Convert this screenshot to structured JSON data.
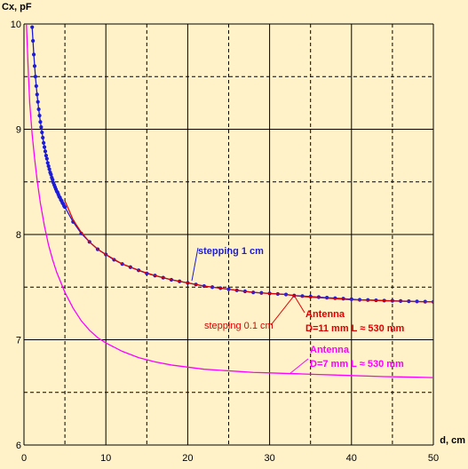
{
  "chart_data": {
    "type": "line",
    "xlabel": "d, cm",
    "ylabel": "Cx, pF",
    "xlim": [
      0,
      50
    ],
    "ylim": [
      6,
      10
    ],
    "x_ticks": [
      0,
      10,
      20,
      30,
      40,
      50
    ],
    "y_ticks": [
      6,
      7,
      8,
      9,
      10
    ],
    "x_ticks_labels": [
      "0",
      "10",
      "20",
      "30",
      "40",
      "50"
    ],
    "y_ticks_labels": [
      "6",
      "7",
      "8",
      "9",
      "10"
    ],
    "grid": true,
    "series": [
      {
        "color": "#1C1CD8",
        "marker": "dot",
        "x": [
          1.0,
          1.1,
          1.2,
          1.3,
          1.4,
          1.5,
          1.6,
          1.7,
          1.8,
          1.9,
          2.0,
          2.1,
          2.2,
          2.3,
          2.4,
          2.5,
          2.6,
          2.7,
          2.8,
          2.9,
          3.0,
          3.1,
          3.2,
          3.3,
          3.4,
          3.5,
          3.6,
          3.7,
          3.8,
          3.9,
          4.0,
          4.1,
          4.2,
          4.3,
          4.4,
          4.5,
          4.6,
          4.7,
          4.8,
          4.9,
          5.0,
          6,
          7,
          8,
          9,
          10,
          11,
          12,
          13,
          14,
          15,
          16,
          17,
          18,
          19,
          20,
          21,
          22,
          23,
          24,
          25,
          26,
          27,
          28,
          29,
          30,
          31,
          32,
          33,
          34,
          35,
          36,
          37,
          38,
          39,
          40,
          41,
          42,
          43,
          44,
          45,
          46,
          47,
          48,
          49,
          50
        ],
        "y": [
          9.97,
          9.84,
          9.71,
          9.6,
          9.5,
          9.41,
          9.33,
          9.26,
          9.19,
          9.13,
          9.07,
          9.02,
          8.97,
          8.92,
          8.87,
          8.83,
          8.79,
          8.75,
          8.72,
          8.68,
          8.65,
          8.62,
          8.59,
          8.57,
          8.54,
          8.52,
          8.49,
          8.47,
          8.45,
          8.43,
          8.41,
          8.4,
          8.38,
          8.36,
          8.35,
          8.33,
          8.32,
          8.3,
          8.29,
          8.27,
          8.26,
          8.12,
          8.01,
          7.93,
          7.86,
          7.81,
          7.76,
          7.72,
          7.69,
          7.66,
          7.63,
          7.61,
          7.59,
          7.57,
          7.555,
          7.54,
          7.525,
          7.51,
          7.5,
          7.49,
          7.48,
          7.47,
          7.46,
          7.45,
          7.445,
          7.44,
          7.435,
          7.43,
          7.42,
          7.415,
          7.41,
          7.405,
          7.4,
          7.395,
          7.39,
          7.385,
          7.38,
          7.378,
          7.375,
          7.372,
          7.37,
          7.368,
          7.366,
          7.364,
          7.362,
          7.36
        ]
      },
      {
        "color": "#E00000",
        "marker": "none",
        "x": [
          5,
          6,
          7,
          8,
          9,
          10,
          12,
          14,
          16,
          18,
          20,
          22,
          24,
          26,
          28,
          30,
          32,
          34,
          36,
          38,
          40,
          42,
          44,
          46,
          48,
          50
        ],
        "y": [
          8.32,
          8.14,
          8.02,
          7.93,
          7.86,
          7.81,
          7.72,
          7.66,
          7.61,
          7.57,
          7.54,
          7.51,
          7.49,
          7.47,
          7.45,
          7.44,
          7.43,
          7.41,
          7.4,
          7.39,
          7.38,
          7.375,
          7.37,
          7.366,
          7.362,
          7.36
        ]
      },
      {
        "color": "#FF00FF",
        "marker": "none",
        "x": [
          0.3,
          0.5,
          0.7,
          1.0,
          1.3,
          1.6,
          2.0,
          2.5,
          3,
          3.5,
          4,
          5,
          6,
          7,
          8,
          9,
          10,
          12,
          14,
          16,
          18,
          20,
          22,
          24,
          26,
          28,
          30,
          32,
          34,
          36,
          38,
          40,
          42,
          44,
          46,
          48,
          50
        ],
        "y": [
          10.0,
          9.6,
          9.25,
          8.95,
          8.72,
          8.52,
          8.3,
          8.08,
          7.9,
          7.76,
          7.64,
          7.45,
          7.3,
          7.18,
          7.09,
          7.02,
          6.97,
          6.89,
          6.83,
          6.79,
          6.76,
          6.74,
          6.72,
          6.71,
          6.7,
          6.69,
          6.685,
          6.68,
          6.675,
          6.67,
          6.665,
          6.66,
          6.655,
          6.65,
          6.647,
          6.644,
          6.64
        ]
      }
    ],
    "annotations": [
      {
        "text": "stepping  1 cm",
        "color": "#1C1CD8",
        "bold": true
      },
      {
        "text": "stepping  0.1 cm",
        "color": "#E00000",
        "bold": false
      },
      {
        "text": "Antenna",
        "color": "#E00000",
        "bold": true
      },
      {
        "text": "D=11 mm   L ≈ 530 mm",
        "color": "#E00000",
        "bold": true
      },
      {
        "text": "Antenna",
        "color": "#FF00FF",
        "bold": true
      },
      {
        "text": "D=7 mm   L ≈ 530 mm",
        "color": "#FF00FF",
        "bold": true
      }
    ]
  }
}
